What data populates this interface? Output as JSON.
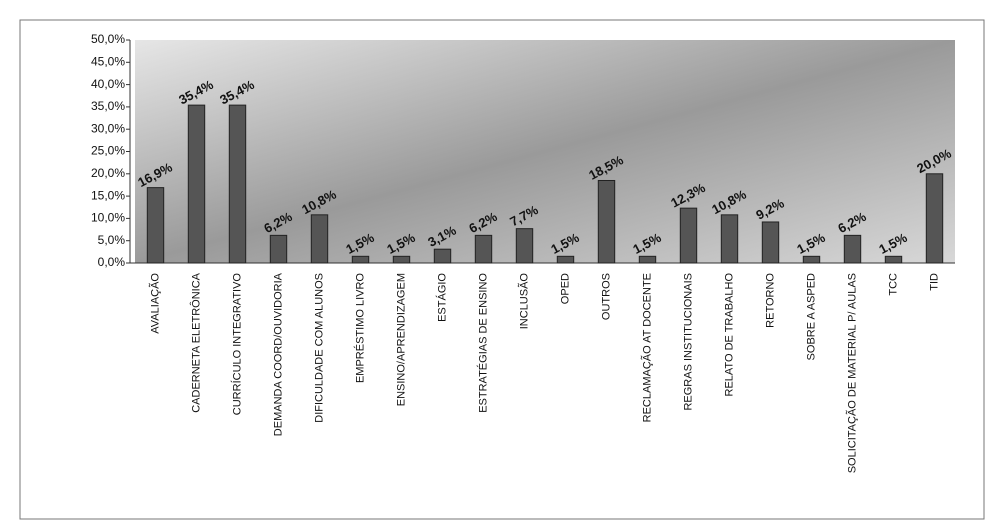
{
  "chart_data": {
    "type": "bar",
    "categories": [
      "AVALIAÇÃO",
      "CADERNETA ELETRÔNICA",
      "CURRÍCULO INTEGRATIVO",
      "DEMANDA COORD/OUVIDORIA",
      "DIFICULDADE COM ALUNOS",
      "EMPRÉSTIMO LIVRO",
      "ENSINO/APRENDIZAGEM",
      "ESTÁGIO",
      "ESTRATÉGIAS DE ENSINO",
      "INCLUSÃO",
      "OPED",
      "OUTROS",
      "RECLAMAÇÃO AT DOCENTE",
      "REGRAS INSTITUCIONAIS",
      "RELATO DE TRABALHO",
      "RETORNO",
      "SOBRE A ASPED",
      "SOLICITAÇÃO DE MATERIAL P/ AULAS",
      "TCC",
      "TID"
    ],
    "values": [
      16.9,
      35.4,
      35.4,
      6.2,
      10.8,
      1.5,
      1.5,
      3.1,
      6.2,
      7.7,
      1.5,
      18.5,
      1.5,
      12.3,
      10.8,
      9.2,
      1.5,
      6.2,
      1.5,
      20.0
    ],
    "value_labels": [
      "16,9%",
      "35,4%",
      "35,4%",
      "6,2%",
      "10,8%",
      "1,5%",
      "1,5%",
      "3,1%",
      "6,2%",
      "7,7%",
      "1,5%",
      "18,5%",
      "1,5%",
      "12,3%",
      "10,8%",
      "9,2%",
      "1,5%",
      "6,2%",
      "1,5%",
      "20,0%"
    ],
    "color": "#555555",
    "ylim": [
      0,
      50
    ],
    "yticks": [
      {
        "value": 0,
        "label": "0,0%"
      },
      {
        "value": 5,
        "label": "5,0%"
      },
      {
        "value": 10,
        "label": "10,0%"
      },
      {
        "value": 15,
        "label": "15,0%"
      },
      {
        "value": 20,
        "label": "20,0%"
      },
      {
        "value": 25,
        "label": "25,0%"
      },
      {
        "value": 30,
        "label": "30,0%"
      },
      {
        "value": 35,
        "label": "35,0%"
      },
      {
        "value": 40,
        "label": "40,0%"
      },
      {
        "value": 45,
        "label": "45,0%"
      },
      {
        "value": 50,
        "label": "50,0%"
      }
    ]
  }
}
